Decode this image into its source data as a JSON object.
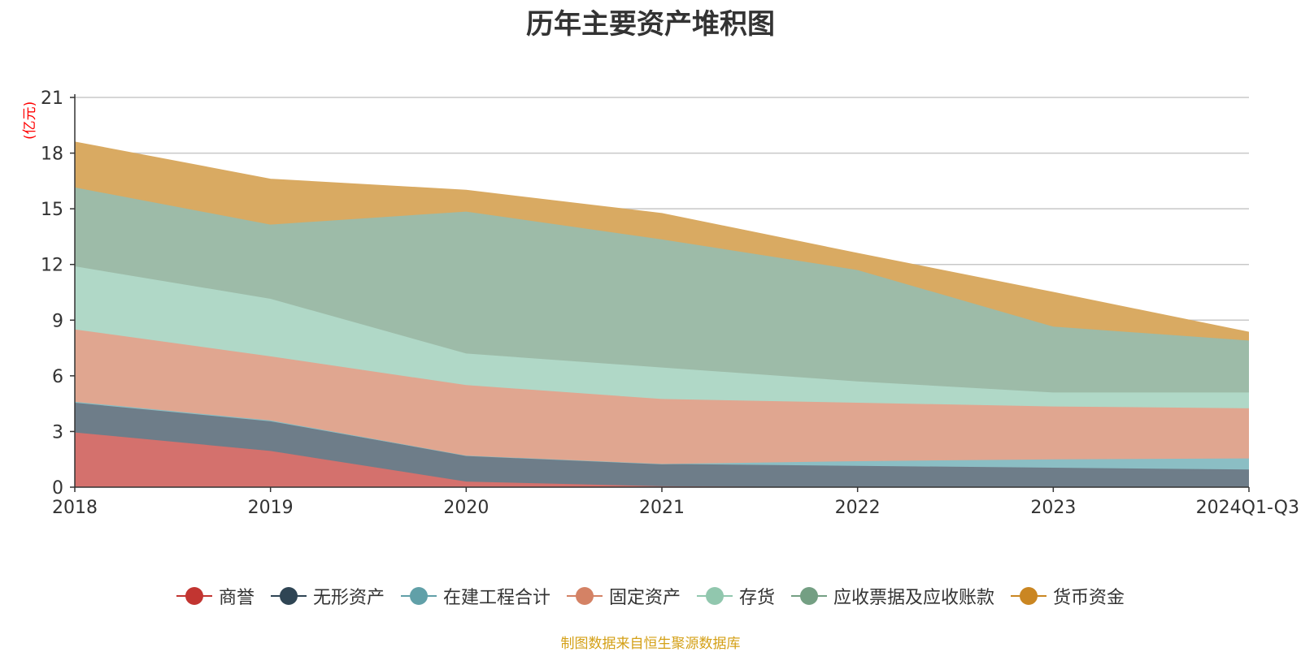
{
  "chart_data": {
    "type": "area",
    "stacked": true,
    "title": "历年主要资产堆积图",
    "unit_label": "(亿元)",
    "categories": [
      "2018",
      "2019",
      "2020",
      "2021",
      "2022",
      "2023",
      "2024Q1-Q3"
    ],
    "y_ticks": [
      "0",
      "3",
      "6",
      "9",
      "12",
      "15",
      "18",
      "21"
    ],
    "ylim": [
      0,
      21
    ],
    "grid": true,
    "legend_position": "bottom",
    "series": [
      {
        "name": "商誉",
        "color": "#c23531",
        "fill": "#d4716d",
        "values": [
          2.95,
          1.95,
          0.3,
          0.05,
          0.0,
          0.0,
          0.0
        ]
      },
      {
        "name": "无形资产",
        "color": "#2f4554",
        "fill": "#6e7d89",
        "values": [
          1.6,
          1.6,
          1.4,
          1.2,
          1.15,
          1.05,
          0.95
        ]
      },
      {
        "name": "在建工程合计",
        "color": "#61a0a8",
        "fill": "#8bbec4",
        "values": [
          0.05,
          0.05,
          0.0,
          0.0,
          0.25,
          0.45,
          0.6
        ]
      },
      {
        "name": "固定资产",
        "color": "#d48265",
        "fill": "#e0a690",
        "values": [
          3.9,
          3.45,
          3.8,
          3.5,
          3.15,
          2.85,
          2.7
        ]
      },
      {
        "name": "存货",
        "color": "#91c7ae",
        "fill": "#b0d8c7",
        "values": [
          3.4,
          3.1,
          1.7,
          1.7,
          1.15,
          0.75,
          0.85
        ]
      },
      {
        "name": "应收票据及应收账款",
        "color": "#749f83",
        "fill": "#9dbba8",
        "values": [
          4.25,
          4.0,
          7.65,
          6.9,
          6.0,
          3.55,
          2.8
        ]
      },
      {
        "name": "货币资金",
        "color": "#ca8622",
        "fill": "#d9aa62",
        "values": [
          2.45,
          2.45,
          1.15,
          1.4,
          0.9,
          1.85,
          0.45
        ]
      }
    ]
  },
  "source_note": "制图数据来自恒生聚源数据库"
}
